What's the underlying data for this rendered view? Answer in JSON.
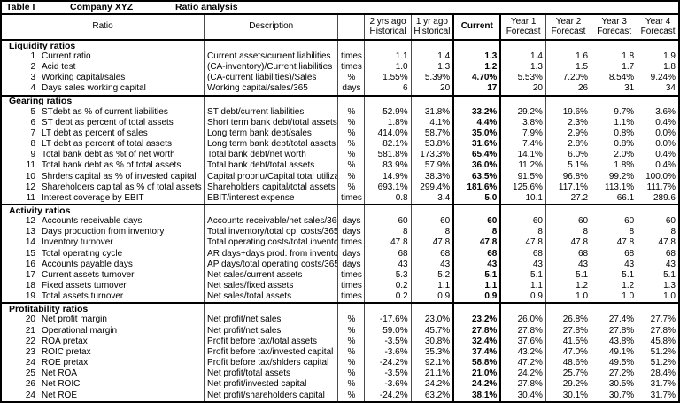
{
  "title": {
    "table_label": "Table I",
    "company": "Company XYZ",
    "subtitle": "Ratio analysis"
  },
  "columns": {
    "ratio": "Ratio",
    "description": "Description",
    "units": "",
    "periods": [
      {
        "line1": "2 yrs ago",
        "line2": "Historical",
        "emphasis": false
      },
      {
        "line1": "1 yr ago",
        "line2": "Historical",
        "emphasis": false
      },
      {
        "line1": "Current",
        "line2": "",
        "emphasis": true
      },
      {
        "line1": "Year 1",
        "line2": "Forecast",
        "emphasis": false
      },
      {
        "line1": "Year 2",
        "line2": "Forecast",
        "emphasis": false
      },
      {
        "line1": "Year 3",
        "line2": "Forecast",
        "emphasis": false
      },
      {
        "line1": "Year 4",
        "line2": "Forecast",
        "emphasis": false
      }
    ]
  },
  "sections": [
    {
      "name": "Liquidity ratios",
      "rows": [
        {
          "num": "1",
          "label": "Current ratio",
          "description": "Current assets/current liabilities",
          "units": "times",
          "values": [
            "1.1",
            "1.4",
            "1.3",
            "1.4",
            "1.6",
            "1.8",
            "1.9"
          ]
        },
        {
          "num": "2",
          "label": "Acid test",
          "description": "(CA-inventory)/Current liabilities",
          "units": "times",
          "values": [
            "1.0",
            "1.3",
            "1.2",
            "1.3",
            "1.5",
            "1.7",
            "1.8"
          ]
        },
        {
          "num": "3",
          "label": "Working capital/sales",
          "description": "(CA-current liabilities)/Sales",
          "units": "%",
          "values": [
            "1.55%",
            "5.39%",
            "4.70%",
            "5.53%",
            "7.20%",
            "8.54%",
            "9.24%"
          ]
        },
        {
          "num": "4",
          "label": "Days sales working capital",
          "description": "Working capital/sales/365",
          "units": "days",
          "values": [
            "6",
            "20",
            "17",
            "20",
            "26",
            "31",
            "34"
          ]
        }
      ]
    },
    {
      "name": "Gearing ratios",
      "rows": [
        {
          "num": "5",
          "label": "STdebt as % of current liabilities",
          "description": "ST debt/current liabilities",
          "units": "%",
          "values": [
            "52.9%",
            "31.8%",
            "33.2%",
            "29.2%",
            "19.6%",
            "9.7%",
            "3.6%"
          ]
        },
        {
          "num": "6",
          "label": "ST debt as percent of total assets",
          "description": "Short term bank debt/total assets",
          "units": "%",
          "values": [
            "1.8%",
            "4.1%",
            "4.4%",
            "3.8%",
            "2.3%",
            "1.1%",
            "0.4%"
          ]
        },
        {
          "num": "7",
          "label": "LT debt as percent of sales",
          "description": "Long term bank debt/sales",
          "units": "%",
          "values": [
            "414.0%",
            "58.7%",
            "35.0%",
            "7.9%",
            "2.9%",
            "0.8%",
            "0.0%"
          ]
        },
        {
          "num": "8",
          "label": "LT debt as percent of total assets",
          "description": "Long term bank debt/total assets",
          "units": "%",
          "values": [
            "82.1%",
            "53.8%",
            "31.6%",
            "7.4%",
            "2.8%",
            "0.8%",
            "0.0%"
          ]
        },
        {
          "num": "9",
          "label": "Total bank debt as %t of net worth",
          "description": "Total bank debt/net worth",
          "units": "%",
          "values": [
            "581.8%",
            "173.3%",
            "65.4%",
            "14.1%",
            "6.0%",
            "2.0%",
            "0.4%"
          ]
        },
        {
          "num": "11",
          "label": "Total bank debt as % of total assets",
          "description": "Total bank debt/total assets",
          "units": "%",
          "values": [
            "83.9%",
            "57.9%",
            "36.0%",
            "11.2%",
            "5.1%",
            "1.8%",
            "0.4%"
          ]
        },
        {
          "num": "10",
          "label": "Shrders capital as % of invested capital",
          "description": "Capital propriu/Capital total utilizat",
          "units": "%",
          "values": [
            "14.9%",
            "38.3%",
            "63.5%",
            "91.5%",
            "96.8%",
            "99.2%",
            "100.0%"
          ]
        },
        {
          "num": "12",
          "label": "Shareholders capital as % of total assets",
          "description": "Shareholders capital/total assets",
          "units": "%",
          "values": [
            "693.1%",
            "299.4%",
            "181.6%",
            "125.6%",
            "117.1%",
            "113.1%",
            "111.7%"
          ]
        },
        {
          "num": "11",
          "label": "Interest coverage by EBIT",
          "description": "EBIT/interest expense",
          "units": "times",
          "values": [
            "0.8",
            "3.4",
            "5.0",
            "10.1",
            "27.2",
            "66.1",
            "289.6"
          ]
        }
      ]
    },
    {
      "name": "Activity ratios",
      "rows": [
        {
          "num": "12",
          "label": "Accounts receivable days",
          "description": "Accounts receivable/net sales/365",
          "units": "days",
          "values": [
            "60",
            "60",
            "60",
            "60",
            "60",
            "60",
            "60"
          ]
        },
        {
          "num": "13",
          "label": "Days production from inventory",
          "description": "Total inventory/total op. costs/365",
          "units": "days",
          "values": [
            "8",
            "8",
            "8",
            "8",
            "8",
            "8",
            "8"
          ]
        },
        {
          "num": "14",
          "label": "Inventory turnover",
          "description": "Total operating costs/total inventory",
          "units": "times",
          "values": [
            "47.8",
            "47.8",
            "47.8",
            "47.8",
            "47.8",
            "47.8",
            "47.8"
          ]
        },
        {
          "num": "15",
          "label": "Total operating cycle",
          "description": "AR days+days prod. from inventory",
          "units": "days",
          "values": [
            "68",
            "68",
            "68",
            "68",
            "68",
            "68",
            "68"
          ]
        },
        {
          "num": "16",
          "label": "Accounts payable days",
          "description": "AP days/total operating costs/365",
          "units": "days",
          "values": [
            "43",
            "43",
            "43",
            "43",
            "43",
            "43",
            "43"
          ]
        },
        {
          "num": "17",
          "label": "Current assets turnover",
          "description": "Net sales/current assets",
          "units": "times",
          "values": [
            "5.3",
            "5.2",
            "5.1",
            "5.1",
            "5.1",
            "5.1",
            "5.1"
          ]
        },
        {
          "num": "18",
          "label": "Fixed assets turnover",
          "description": "Net sales/fixed assets",
          "units": "times",
          "values": [
            "0.2",
            "1.1",
            "1.1",
            "1.1",
            "1.2",
            "1.2",
            "1.3"
          ]
        },
        {
          "num": "19",
          "label": "Total assets turnover",
          "description": "Net sales/total assets",
          "units": "times",
          "values": [
            "0.2",
            "0.9",
            "0.9",
            "0.9",
            "1.0",
            "1.0",
            "1.0"
          ]
        }
      ]
    },
    {
      "name": "Profitability ratios",
      "rows": [
        {
          "num": "20",
          "label": "Net profit margin",
          "description": "Net profit/net sales",
          "units": "%",
          "values": [
            "-17.6%",
            "23.0%",
            "23.2%",
            "26.0%",
            "26.8%",
            "27.4%",
            "27.7%"
          ]
        },
        {
          "num": "21",
          "label": "Operational margin",
          "description": "Net profit/net sales",
          "units": "%",
          "values": [
            "59.0%",
            "45.7%",
            "27.8%",
            "27.8%",
            "27.8%",
            "27.8%",
            "27.8%"
          ]
        },
        {
          "num": "22",
          "label": "ROA pretax",
          "description": "Profit before tax/total assets",
          "units": "%",
          "values": [
            "-3.5%",
            "30.8%",
            "32.4%",
            "37.6%",
            "41.5%",
            "43.8%",
            "45.8%"
          ]
        },
        {
          "num": "23",
          "label": "ROIC pretax",
          "description": "Profit before tax/invested capital",
          "units": "%",
          "values": [
            "-3.6%",
            "35.3%",
            "37.4%",
            "43.2%",
            "47.0%",
            "49.1%",
            "51.2%"
          ]
        },
        {
          "num": "24",
          "label": "ROE pretax",
          "description": "Profit before tax/shlders capital",
          "units": "%",
          "values": [
            "-24.2%",
            "92.1%",
            "58.8%",
            "47.2%",
            "48.6%",
            "49.5%",
            "51.2%"
          ]
        },
        {
          "num": "25",
          "label": "Net ROA",
          "description": "Net profit/total assets",
          "units": "%",
          "values": [
            "-3.5%",
            "21.1%",
            "21.0%",
            "24.2%",
            "25.7%",
            "27.2%",
            "28.4%"
          ]
        },
        {
          "num": "26",
          "label": "Net ROIC",
          "description": "Net profit/invested capital",
          "units": "%",
          "values": [
            "-3.6%",
            "24.2%",
            "24.2%",
            "27.8%",
            "29.2%",
            "30.5%",
            "31.7%"
          ]
        },
        {
          "num": "24",
          "label": "Net ROE",
          "description": "Net profit/shareholders capital",
          "units": "%",
          "values": [
            "-24.2%",
            "63.2%",
            "38.1%",
            "30.4%",
            "30.1%",
            "30.7%",
            "31.7%"
          ]
        }
      ]
    }
  ],
  "colors": {
    "grid_thin": "#4a4a4a",
    "grid_thick": "#000000",
    "text": "#000000",
    "background": "#ffffff"
  }
}
